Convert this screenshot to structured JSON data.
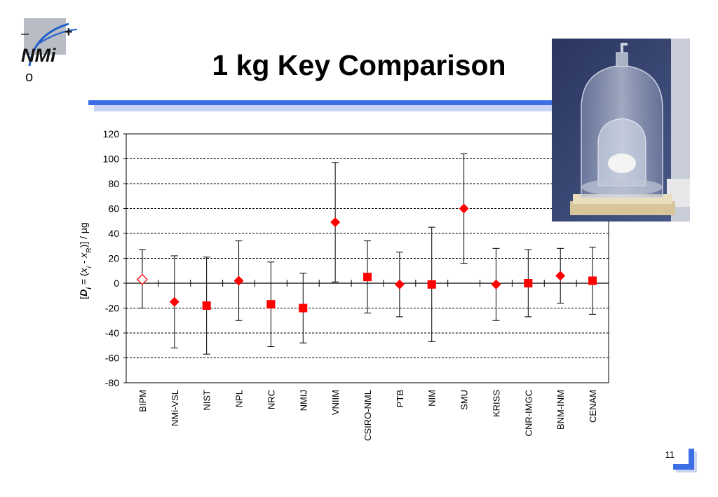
{
  "slide": {
    "title": "1 kg Key Comparison",
    "page_number": "11",
    "logo_text": "NMi",
    "logo_plus": "+",
    "logo_minus": "–",
    "logo_o": "o"
  },
  "colors": {
    "accent_blue": "#3e6ee6",
    "marker_red": "#ff0000",
    "grid": "#000000"
  },
  "chart_data": {
    "type": "scatter",
    "ylabel_parts": [
      "[",
      "D",
      "i",
      " = (",
      "x",
      "i",
      " - ",
      "x",
      "R",
      ")] / µg"
    ],
    "ylim": [
      -80,
      120
    ],
    "yticks": [
      -80,
      -60,
      -40,
      -20,
      0,
      20,
      40,
      60,
      80,
      100,
      120
    ],
    "grid": "horizontal dashed",
    "categories": [
      "BIPM",
      "NMi-VSL",
      "NIST",
      "NPL",
      "NRC",
      "NMIJ",
      "VNIIM",
      "CSIRO-NML",
      "PTB",
      "NIM",
      "SMU",
      "KRISS",
      "CNR-IMGC",
      "BNM-INM",
      "CENAM"
    ],
    "points": [
      {
        "label": "BIPM",
        "value": 3,
        "lower": -20,
        "upper": 27,
        "marker": "hollow-diamond"
      },
      {
        "label": "NMi-VSL",
        "value": -15,
        "lower": -52,
        "upper": 22,
        "marker": "diamond"
      },
      {
        "label": "NIST",
        "value": -18,
        "lower": -57,
        "upper": 21,
        "marker": "square"
      },
      {
        "label": "NPL",
        "value": 2,
        "lower": -30,
        "upper": 34,
        "marker": "diamond"
      },
      {
        "label": "NRC",
        "value": -17,
        "lower": -51,
        "upper": 17,
        "marker": "square"
      },
      {
        "label": "NMIJ",
        "value": -20,
        "lower": -48,
        "upper": 8,
        "marker": "square"
      },
      {
        "label": "VNIIM",
        "value": 49,
        "lower": 1,
        "upper": 97,
        "marker": "diamond"
      },
      {
        "label": "CSIRO-NML",
        "value": 5,
        "lower": -24,
        "upper": 34,
        "marker": "square"
      },
      {
        "label": "PTB",
        "value": -1,
        "lower": -27,
        "upper": 25,
        "marker": "diamond"
      },
      {
        "label": "NIM",
        "value": -1,
        "lower": -47,
        "upper": 45,
        "marker": "square"
      },
      {
        "label": "SMU",
        "value": 60,
        "lower": 16,
        "upper": 104,
        "marker": "diamond"
      },
      {
        "label": "KRISS",
        "value": -1,
        "lower": -30,
        "upper": 28,
        "marker": "diamond"
      },
      {
        "label": "CNR-IMGC",
        "value": 0,
        "lower": -27,
        "upper": 27,
        "marker": "square"
      },
      {
        "label": "BNM-INM",
        "value": 6,
        "lower": -16,
        "upper": 28,
        "marker": "diamond"
      },
      {
        "label": "CENAM",
        "value": 2,
        "lower": -25,
        "upper": 29,
        "marker": "square"
      }
    ]
  }
}
